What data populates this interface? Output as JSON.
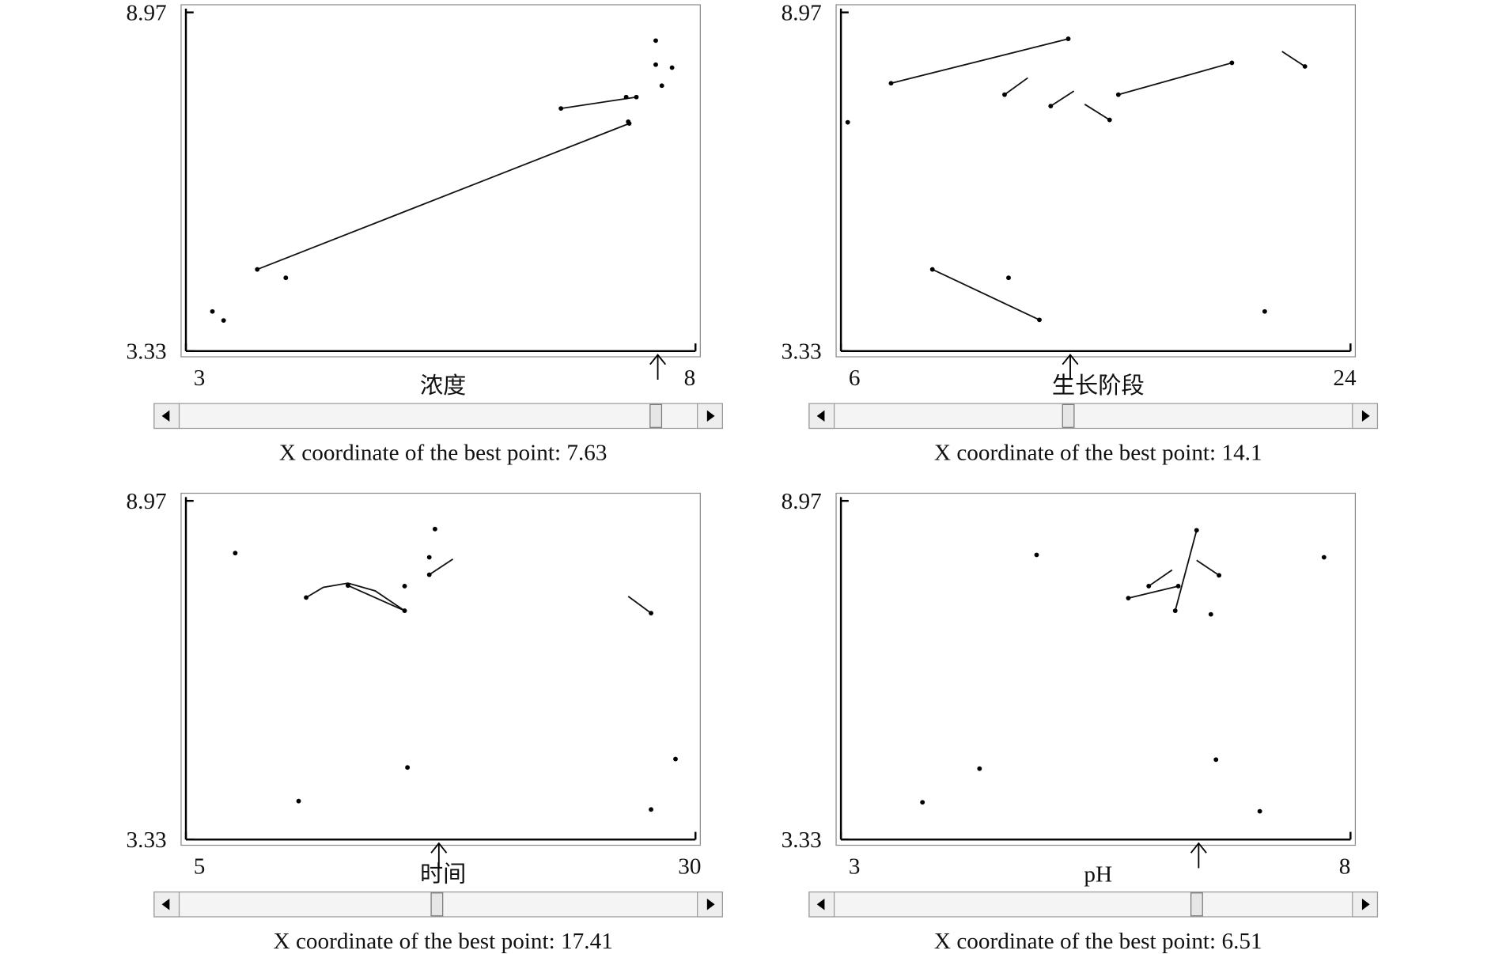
{
  "chart_data": [
    {
      "type": "scatter",
      "x_label": "浓度",
      "xlim": [
        3,
        8
      ],
      "xticks": [
        3,
        8
      ],
      "ylim": [
        3.33,
        8.97
      ],
      "yticks": [
        3.33,
        8.97
      ],
      "points": {
        "x": [
          3.26,
          3.37,
          3.7,
          3.98,
          6.68,
          7.32,
          7.42,
          7.34,
          7.35,
          7.61,
          7.61,
          7.77,
          7.67
        ],
        "y": [
          3.99,
          3.84,
          4.69,
          4.55,
          7.37,
          7.56,
          7.56,
          7.15,
          7.12,
          8.5,
          8.1,
          8.05,
          7.75
        ]
      },
      "lines": [
        {
          "x": [
            3.7,
            7.35
          ],
          "y": [
            4.69,
            7.12
          ]
        },
        {
          "x": [
            6.68,
            7.42
          ],
          "y": [
            7.37,
            7.56
          ]
        }
      ],
      "best_x": 7.63,
      "caption": "X coordinate of the best point: 7.63"
    },
    {
      "type": "scatter",
      "x_label": "生长阶段",
      "xlim": [
        6,
        24
      ],
      "xticks": [
        6,
        24
      ],
      "ylim": [
        3.33,
        8.97
      ],
      "yticks": [
        3.33,
        8.97
      ],
      "points": {
        "x": [
          6.24,
          7.77,
          14.03,
          11.78,
          13.41,
          15.49,
          15.8,
          19.81,
          22.39,
          9.23,
          13.01,
          11.92,
          20.97
        ],
        "y": [
          7.14,
          7.79,
          8.53,
          7.6,
          7.41,
          7.18,
          7.6,
          8.13,
          8.07,
          4.69,
          3.85,
          4.55,
          3.99
        ]
      },
      "lines": [
        {
          "x": [
            7.77,
            14.03
          ],
          "y": [
            7.79,
            8.53
          ]
        },
        {
          "x": [
            11.78,
            12.6
          ],
          "y": [
            7.6,
            7.88
          ]
        },
        {
          "x": [
            13.41,
            14.23
          ],
          "y": [
            7.41,
            7.66
          ]
        },
        {
          "x": [
            14.61,
            15.49
          ],
          "y": [
            7.44,
            7.18
          ]
        },
        {
          "x": [
            15.8,
            19.81
          ],
          "y": [
            7.6,
            8.13
          ]
        },
        {
          "x": [
            21.58,
            22.39
          ],
          "y": [
            8.32,
            8.07
          ]
        },
        {
          "x": [
            9.23,
            13.01
          ],
          "y": [
            4.69,
            3.85
          ]
        }
      ],
      "best_x": 14.1,
      "caption": "X coordinate of the best point: 14.1"
    },
    {
      "type": "scatter",
      "x_label": "时间",
      "xlim": [
        5,
        30
      ],
      "xticks": [
        5,
        30
      ],
      "ylim": [
        3.33,
        8.97
      ],
      "yticks": [
        3.33,
        8.97
      ],
      "points": {
        "x": [
          7.42,
          10.53,
          10.9,
          12.95,
          15.73,
          15.73,
          15.87,
          16.94,
          16.94,
          17.22,
          27.82,
          27.82,
          29.02
        ],
        "y": [
          8.1,
          3.97,
          7.36,
          7.56,
          7.14,
          7.55,
          4.53,
          8.03,
          7.74,
          8.5,
          7.1,
          3.83,
          4.67
        ]
      },
      "lines": [
        {
          "x": [
            10.9,
            11.74,
            12.95,
            14.29,
            15.73
          ],
          "y": [
            7.36,
            7.53,
            7.6,
            7.47,
            7.14
          ]
        },
        {
          "x": [
            12.95,
            15.73
          ],
          "y": [
            7.56,
            7.14
          ]
        },
        {
          "x": [
            16.94,
            18.1
          ],
          "y": [
            7.74,
            8.0
          ]
        },
        {
          "x": [
            26.7,
            27.82
          ],
          "y": [
            7.38,
            7.1
          ]
        }
      ],
      "best_x": 17.41,
      "caption": "X coordinate of the best point: 17.41"
    },
    {
      "type": "scatter",
      "x_label": "pH",
      "xlim": [
        3,
        8
      ],
      "xticks": [
        3,
        8
      ],
      "ylim": [
        3.33,
        8.97
      ],
      "yticks": [
        3.33,
        8.97
      ],
      "points": {
        "x": [
          3.8,
          4.36,
          4.92,
          5.82,
          6.02,
          6.31,
          6.28,
          6.49,
          6.71,
          6.63,
          6.68,
          7.11,
          7.74
        ],
        "y": [
          3.95,
          4.51,
          8.07,
          7.35,
          7.55,
          7.55,
          7.14,
          8.48,
          7.73,
          7.08,
          4.66,
          3.8,
          8.03
        ]
      },
      "lines": [
        {
          "x": [
            5.82,
            6.31
          ],
          "y": [
            7.35,
            7.55
          ]
        },
        {
          "x": [
            6.02,
            6.25
          ],
          "y": [
            7.55,
            7.82
          ]
        },
        {
          "x": [
            6.28,
            6.49
          ],
          "y": [
            7.14,
            8.48
          ]
        },
        {
          "x": [
            6.49,
            6.71
          ],
          "y": [
            7.98,
            7.73
          ]
        }
      ],
      "best_x": 6.51,
      "caption": "X coordinate of the best point: 6.51"
    }
  ]
}
